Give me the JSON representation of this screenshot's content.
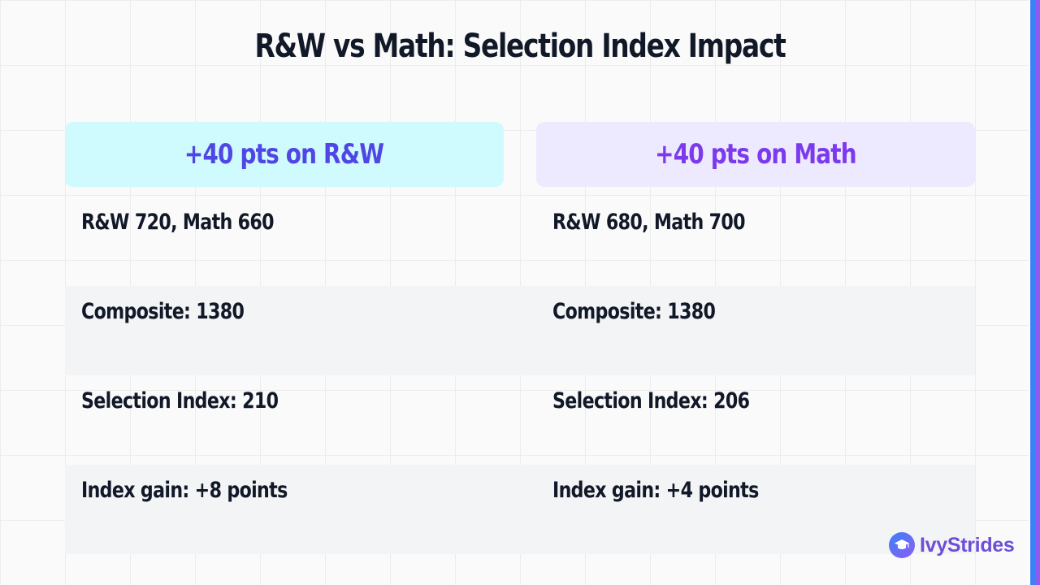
{
  "title": "R&W vs Math: Selection Index Impact",
  "columns": [
    {
      "header": "+40 pts on R&W",
      "accent": "#4f46e5",
      "header_bg": "#cffafe",
      "rows": [
        "R&W 720, Math 660",
        "Composite: 1380",
        "Selection Index: 210",
        "Index gain: +8 points"
      ]
    },
    {
      "header": "+40 pts on Math",
      "accent": "#7c3aed",
      "header_bg": "#ede9fe",
      "rows": [
        "R&W 680, Math 700",
        "Composite: 1380",
        "Selection Index: 206",
        "Index gain: +4 points"
      ]
    }
  ],
  "brand": {
    "name": "IvyStrides",
    "icon": "graduation-cap-icon",
    "gradient": [
      "#3b82f6",
      "#8b5cf6"
    ]
  }
}
